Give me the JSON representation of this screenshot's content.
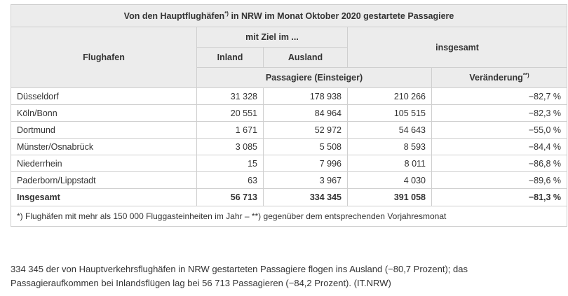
{
  "table": {
    "title": {
      "main": "Von den Hauptflughäfen",
      "sup": "*)",
      "rest": " in NRW im Monat Oktober 2020 gestartete Passagiere"
    },
    "header": {
      "airport": "Flughafen",
      "destination": "mit Ziel im ...",
      "domestic": "Inland",
      "abroad": "Ausland",
      "total": "insgesamt",
      "passengers": "Passagiere (Einsteiger)",
      "change": {
        "main": "Veränderung",
        "sup": "**)"
      }
    },
    "rows": [
      [
        "Düsseldorf",
        "31 328",
        "178 938",
        "210 266",
        "−82,7 %"
      ],
      [
        "Köln/Bonn",
        "20 551",
        "84 964",
        "105 515",
        "−82,3 %"
      ],
      [
        "Dortmund",
        "1 671",
        "52 972",
        "54 643",
        "−55,0 %"
      ],
      [
        "Münster/Osnabrück",
        "3 085",
        "5 508",
        "8 593",
        "−84,4 %"
      ],
      [
        "Niederrhein",
        "15",
        "7 996",
        "8 011",
        "−86,8 %"
      ],
      [
        "Paderborn/Lippstadt",
        "63",
        "3 967",
        "4 030",
        "−89,6 %"
      ]
    ],
    "total_row": [
      "Insgesamt",
      "56 713",
      "334 345",
      "391 058",
      "−81,3 %"
    ],
    "footnote": "*) Flughäfen mit mehr als 150 000 Fluggasteinheiten im Jahr – **) gegenüber dem entsprechenden Vorjahresmonat"
  },
  "paragraph": {
    "lines": [
      "334 345 der von Hauptverkehrsflughäfen in NRW gestarteten Passagiere flogen ins Ausland (−80,7 Prozent); das",
      "Passagieraufkommen bei Inlandsflügen lag bei 56 713 Passagieren (−84,2 Prozent). (IT.NRW)"
    ]
  }
}
